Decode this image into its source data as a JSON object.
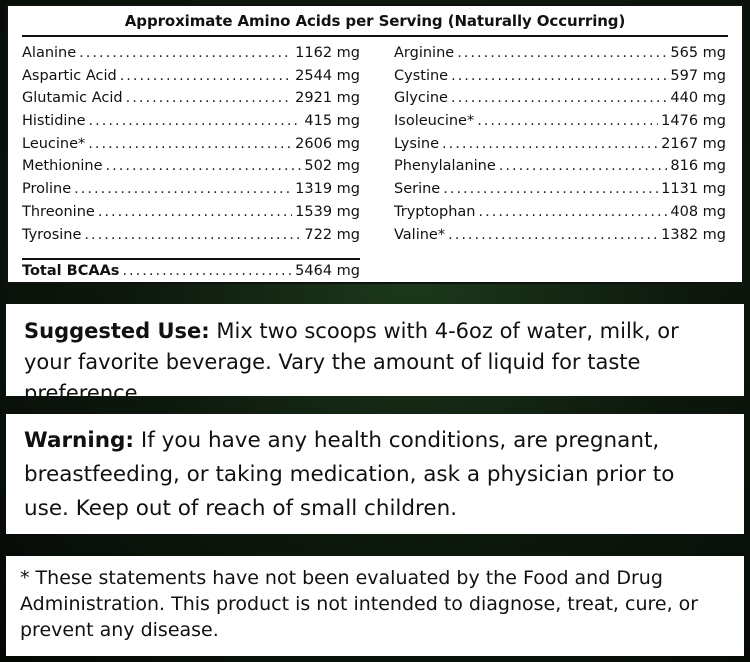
{
  "amino": {
    "title": "Approximate Amino Acids per Serving (Naturally Occurring)",
    "left": [
      {
        "name": "Alanine",
        "amount": "1162 mg"
      },
      {
        "name": "Aspartic Acid",
        "amount": "2544 mg"
      },
      {
        "name": "Glutamic Acid",
        "amount": "2921 mg"
      },
      {
        "name": "Histidine",
        "amount": "415 mg"
      },
      {
        "name": "Leucine*",
        "amount": "2606 mg"
      },
      {
        "name": "Methionine",
        "amount": "502 mg"
      },
      {
        "name": "Proline",
        "amount": "1319 mg"
      },
      {
        "name": "Threonine",
        "amount": "1539 mg"
      },
      {
        "name": "Tyrosine",
        "amount": "722 mg"
      }
    ],
    "right": [
      {
        "name": "Arginine",
        "amount": "565 mg"
      },
      {
        "name": "Cystine",
        "amount": "597 mg"
      },
      {
        "name": "Glycine",
        "amount": "440 mg"
      },
      {
        "name": "Isoleucine*",
        "amount": "1476 mg"
      },
      {
        "name": "Lysine",
        "amount": "2167 mg"
      },
      {
        "name": "Phenylalanine",
        "amount": "816 mg"
      },
      {
        "name": "Serine",
        "amount": "1131 mg"
      },
      {
        "name": "Tryptophan",
        "amount": "408 mg"
      },
      {
        "name": "Valine*",
        "amount": "1382 mg"
      }
    ],
    "total": {
      "name": "Total BCAAs",
      "amount": "5464 mg"
    }
  },
  "suggested_use": {
    "label": "Suggested Use:",
    "text": " Mix two scoops with 4-6oz of water, milk, or your favorite beverage. Vary the amount of liquid for taste preference."
  },
  "warning": {
    "label": "Warning:",
    "text": " If you have any health conditions, are pregnant, breastfeeding, or taking medication, ask a physician prior to use. Keep out of reach of small children."
  },
  "disclaimer": {
    "text": "* These statements have not been evaluated by the Food and Drug Administration. This product is not intended to diagnose, treat, cure, or prevent any disease."
  }
}
